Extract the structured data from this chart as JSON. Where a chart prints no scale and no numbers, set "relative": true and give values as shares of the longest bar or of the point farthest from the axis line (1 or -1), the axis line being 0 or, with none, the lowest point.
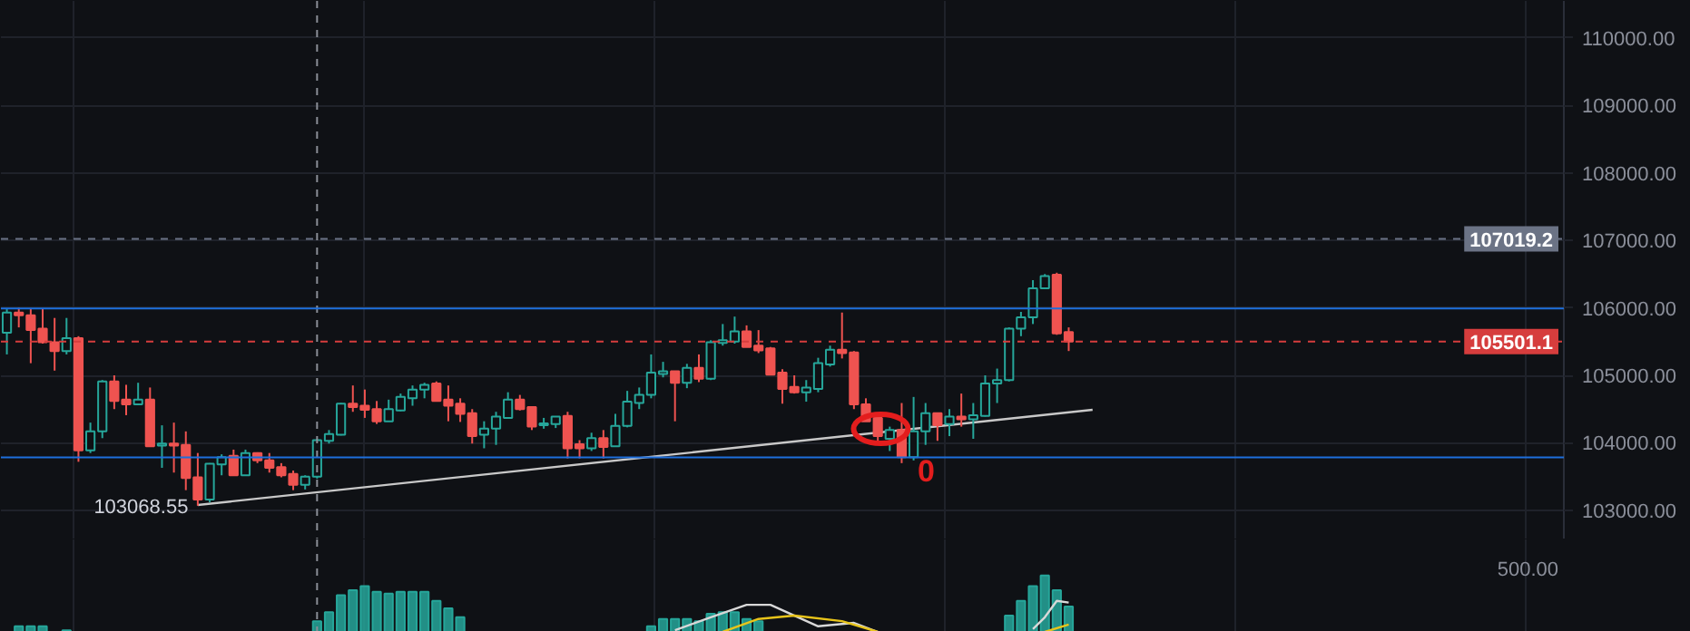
{
  "chart_data": [
    {
      "type": "candlestick",
      "categories": [
        null,
        null,
        null,
        null,
        null,
        null,
        null,
        null,
        null,
        null,
        null,
        null,
        null,
        null,
        null,
        null,
        null,
        null,
        null,
        null,
        null,
        null,
        null,
        null,
        null,
        null,
        null,
        null,
        null,
        null,
        null,
        null,
        null,
        null,
        null,
        null,
        null,
        null,
        null,
        null,
        null,
        null,
        null,
        null,
        null,
        null,
        null,
        null,
        null,
        null,
        null,
        null,
        null,
        null,
        null,
        null,
        null,
        null,
        null,
        null,
        null,
        null,
        null,
        null,
        null,
        null,
        null,
        null,
        null,
        null,
        null,
        null,
        null,
        null,
        null,
        null,
        null,
        null,
        null,
        null,
        null,
        null,
        null,
        null,
        null,
        null,
        null,
        null,
        null,
        null,
        null,
        null,
        null,
        null,
        null,
        null,
        null,
        null,
        null,
        null,
        null,
        null,
        null,
        null,
        null,
        null,
        null,
        null,
        null,
        null,
        null,
        null,
        null,
        null,
        null,
        null,
        null,
        null,
        null,
        null,
        null,
        null,
        null,
        null,
        null,
        null,
        null,
        null,
        null,
        null,
        null
      ],
      "ohlc": [
        [
          105630,
          105980,
          105310,
          105930
        ],
        [
          105930,
          106000,
          105710,
          105890
        ],
        [
          105890,
          105980,
          105180,
          105670
        ],
        [
          105690,
          105980,
          105470,
          105490
        ],
        [
          105490,
          105850,
          105070,
          105360
        ],
        [
          105360,
          105850,
          105310,
          105550
        ],
        [
          105550,
          105580,
          103720,
          103890
        ],
        [
          103890,
          104300,
          103850,
          104170
        ],
        [
          104170,
          104930,
          104070,
          104910
        ],
        [
          104910,
          105000,
          104500,
          104620
        ],
        [
          104640,
          104860,
          104410,
          104570
        ],
        [
          104570,
          104890,
          104570,
          104640
        ],
        [
          104640,
          104820,
          103950,
          103950
        ],
        [
          103960,
          104260,
          103630,
          103990
        ],
        [
          103990,
          104300,
          103560,
          103960
        ],
        [
          103970,
          104170,
          103300,
          103480
        ],
        [
          103490,
          103850,
          103068.55,
          103160
        ],
        [
          103160,
          103700,
          103120,
          103690
        ],
        [
          103680,
          103830,
          103520,
          103790
        ],
        [
          103810,
          103900,
          103520,
          103520
        ],
        [
          103520,
          103900,
          103520,
          103850
        ],
        [
          103850,
          103860,
          103700,
          103740
        ],
        [
          103740,
          103850,
          103560,
          103630
        ],
        [
          103640,
          103700,
          103490,
          103520
        ],
        [
          103540,
          103590,
          103300,
          103380
        ],
        [
          103380,
          103520,
          103310,
          103500
        ],
        [
          103500,
          104060,
          103470,
          104040
        ],
        [
          104030,
          104190,
          103990,
          104130
        ],
        [
          104120,
          104590,
          104110,
          104580
        ],
        [
          104580,
          104850,
          104460,
          104530
        ],
        [
          104550,
          104790,
          104370,
          104490
        ],
        [
          104500,
          104620,
          104280,
          104320
        ],
        [
          104320,
          104640,
          104320,
          104500
        ],
        [
          104480,
          104730,
          104470,
          104680
        ],
        [
          104660,
          104850,
          104550,
          104790
        ],
        [
          104790,
          104890,
          104660,
          104860
        ],
        [
          104880,
          104910,
          104620,
          104620
        ],
        [
          104640,
          104850,
          104320,
          104550
        ],
        [
          104580,
          104660,
          104310,
          104430
        ],
        [
          104440,
          104500,
          103990,
          104100
        ],
        [
          104120,
          104320,
          103920,
          104210
        ],
        [
          104210,
          104460,
          103970,
          104390
        ],
        [
          104370,
          104750,
          104370,
          104640
        ],
        [
          104640,
          104710,
          104480,
          104500
        ],
        [
          104530,
          104530,
          104190,
          104240
        ],
        [
          104260,
          104370,
          104210,
          104290
        ],
        [
          104280,
          104390,
          104220,
          104390
        ],
        [
          104400,
          104460,
          103770,
          103920
        ],
        [
          103980,
          104040,
          103770,
          103920
        ],
        [
          103920,
          104150,
          103880,
          104070
        ],
        [
          104070,
          104190,
          103770,
          103940
        ],
        [
          103950,
          104430,
          103950,
          104250
        ],
        [
          104250,
          104770,
          104230,
          104610
        ],
        [
          104590,
          104820,
          104500,
          104710
        ],
        [
          104710,
          105310,
          104660,
          105040
        ],
        [
          105020,
          105200,
          104970,
          105060
        ],
        [
          105060,
          105060,
          104320,
          104890
        ],
        [
          104890,
          105170,
          104810,
          105110
        ],
        [
          105110,
          105310,
          104900,
          104950
        ],
        [
          104950,
          105520,
          104930,
          105490
        ],
        [
          105480,
          105760,
          105440,
          105520
        ],
        [
          105500,
          105870,
          105470,
          105650
        ],
        [
          105650,
          105740,
          105420,
          105420
        ],
        [
          105440,
          105670,
          105330,
          105370
        ],
        [
          105400,
          105420,
          105010,
          105010
        ],
        [
          105040,
          105090,
          104580,
          104800
        ],
        [
          104830,
          105000,
          104730,
          104750
        ],
        [
          104750,
          104930,
          104610,
          104820
        ],
        [
          104800,
          105260,
          104750,
          105180
        ],
        [
          105160,
          105440,
          105130,
          105380
        ],
        [
          105380,
          105930,
          105250,
          105330
        ],
        [
          105340,
          105360,
          104500,
          104570
        ],
        [
          104570,
          104660,
          104320,
          104320
        ],
        [
          104370,
          104440,
          103970,
          104100
        ],
        [
          104060,
          104240,
          103880,
          104190
        ],
        [
          104190,
          104590,
          103700,
          103790
        ],
        [
          103790,
          104680,
          103740,
          104170
        ],
        [
          104170,
          104590,
          103970,
          104440
        ],
        [
          104440,
          104440,
          104030,
          104260
        ],
        [
          104280,
          104500,
          104100,
          104390
        ],
        [
          104390,
          104730,
          104240,
          104350
        ],
        [
          104350,
          104590,
          104060,
          104410
        ],
        [
          104400,
          105000,
          104390,
          104880
        ],
        [
          104880,
          105100,
          104590,
          104930
        ],
        [
          104930,
          105710,
          104910,
          105690
        ],
        [
          105690,
          105940,
          105580,
          105860
        ],
        [
          105860,
          106410,
          105760,
          106290
        ],
        [
          106290,
          106500,
          106290,
          106470
        ],
        [
          106490,
          106520,
          105600,
          105620
        ],
        [
          105640,
          105710,
          105360,
          105501.1
        ],
        null,
        null,
        null,
        null,
        null,
        null,
        null,
        null,
        null,
        null,
        null,
        null,
        null,
        null,
        null,
        null,
        null,
        null,
        null,
        null,
        null,
        null,
        null,
        null,
        null,
        null,
        null,
        null,
        null,
        null,
        null,
        null,
        null,
        null,
        null,
        null,
        null,
        null,
        null,
        null,
        null
      ],
      "colors": [
        "#26a69a",
        "#ef5350",
        "#ef5350",
        "#ef5350",
        "#ef5350",
        "#26a69a",
        "#ef5350",
        "#26a69a",
        "#26a69a",
        "#ef5350",
        "#ef5350",
        "#26a69a",
        "#ef5350",
        "#26a69a",
        "#ef5350",
        "#ef5350",
        "#ef5350",
        "#26a69a",
        "#26a69a",
        "#ef5350",
        "#26a69a",
        "#ef5350",
        "#ef5350",
        "#ef5350",
        "#ef5350",
        "#26a69a",
        "#26a69a",
        "#26a69a",
        "#26a69a",
        "#ef5350",
        "#ef5350",
        "#ef5350",
        "#26a69a",
        "#26a69a",
        "#26a69a",
        "#26a69a",
        "#ef5350",
        "#ef5350",
        "#ef5350",
        "#ef5350",
        "#26a69a",
        "#26a69a",
        "#26a69a",
        "#ef5350",
        "#ef5350",
        "#26a69a",
        "#26a69a",
        "#ef5350",
        "#ef5350",
        "#26a69a",
        "#ef5350",
        "#26a69a",
        "#26a69a",
        "#26a69a",
        "#26a69a",
        "#26a69a",
        "#ef5350",
        "#26a69a",
        "#ef5350",
        "#26a69a",
        "#26a69a",
        "#26a69a",
        "#ef5350",
        "#ef5350",
        "#ef5350",
        "#ef5350",
        "#ef5350",
        "#26a69a",
        "#26a69a",
        "#26a69a",
        "#ef5350",
        "#ef5350",
        "#ef5350",
        "#ef5350",
        "#26a69a",
        "#ef5350",
        "#26a69a",
        "#26a69a",
        "#ef5350",
        "#26a69a",
        "#ef5350",
        "#26a69a",
        "#26a69a",
        "#26a69a",
        "#26a69a",
        "#26a69a",
        "#26a69a",
        "#26a69a",
        "#ef5350",
        "#ef5350",
        null,
        null,
        null,
        null,
        null,
        null,
        null,
        null,
        null,
        null,
        null,
        null,
        null,
        null,
        null,
        null,
        null,
        null,
        null,
        null,
        null,
        null,
        null,
        null,
        null,
        null,
        null,
        null,
        null,
        null,
        null,
        null,
        null,
        null,
        null,
        null,
        null,
        null,
        null,
        null,
        null
      ],
      "series": [
        {
          "type": "line",
          "color": "#c8c8c8",
          "values": [
            null,
            null,
            null,
            null,
            null,
            null,
            null,
            null,
            null,
            null,
            null,
            null,
            null,
            null,
            null,
            null,
            103080,
            null,
            null,
            null,
            null,
            null,
            null,
            null,
            null,
            null,
            null,
            null,
            null,
            null,
            null,
            null,
            null,
            null,
            null,
            null,
            null,
            null,
            null,
            null,
            null,
            null,
            null,
            null,
            null,
            null,
            null,
            null,
            null,
            null,
            null,
            null,
            null,
            null,
            null,
            null,
            null,
            null,
            null,
            null,
            null,
            null,
            null,
            null,
            null,
            null,
            null,
            null,
            null,
            null,
            null,
            null,
            null,
            null,
            null,
            null,
            null,
            null,
            null,
            null,
            null,
            null,
            null,
            null,
            null,
            null,
            null,
            null,
            null,
            null,
            null,
            104490,
            null,
            null,
            null,
            null,
            null,
            null,
            null,
            null,
            null,
            null,
            null,
            null,
            null,
            null,
            null,
            null,
            null,
            null,
            null,
            null,
            null,
            null,
            null,
            null,
            null,
            null,
            null,
            null,
            null,
            null,
            null,
            null,
            null,
            null,
            null,
            null,
            null,
            null,
            null
          ]
        }
      ],
      "ylim": [
        102570,
        110545
      ],
      "yticks": [
        {
          "value": 103000,
          "label": "103000.00"
        },
        {
          "value": 104000,
          "label": "104000.00"
        },
        {
          "value": 105000,
          "label": "105000.00"
        },
        {
          "value": 106000,
          "label": "106000.00"
        },
        {
          "value": 107000,
          "label": "107000.00"
        },
        {
          "value": 108000,
          "label": "108000.00"
        },
        {
          "value": 109000,
          "label": "109000.00"
        },
        {
          "value": 110000,
          "label": "110000.00"
        }
      ],
      "grid": true,
      "annotations": [
        "103068.55",
        "0"
      ],
      "ref_lines": [
        {
          "axis": "y",
          "value": 107019.2,
          "label": "107019.2",
          "color": "#6b7385",
          "line_style": "dashed"
        },
        {
          "axis": "y",
          "value": 105501.1,
          "label": "105501.1",
          "color": "#d63d3d",
          "line_style": "dashed"
        },
        {
          "axis": "y",
          "value": 105990,
          "color": "#1e6fdc"
        },
        {
          "axis": "y",
          "value": 103786,
          "color": "#1e6fdc"
        }
      ]
    },
    {
      "type": "bar",
      "relative": true,
      "categories": [
        null,
        null,
        null,
        null,
        null,
        null,
        null,
        null,
        null,
        null,
        null,
        null,
        null,
        null,
        null,
        null,
        null,
        null,
        null,
        null,
        null,
        null,
        null,
        null,
        null,
        null,
        null,
        null,
        null,
        null,
        null,
        null,
        null,
        null,
        null,
        null,
        null,
        null,
        null,
        null,
        null,
        null,
        null,
        null,
        null,
        null,
        null,
        null,
        null,
        null,
        null,
        null,
        null,
        null,
        null,
        null,
        null,
        null,
        null,
        null,
        null,
        null,
        null,
        null,
        null,
        null,
        null,
        null,
        null,
        null,
        null,
        null,
        null,
        null,
        null,
        null,
        null,
        null,
        null,
        null,
        null,
        null,
        null,
        null,
        null,
        null,
        null,
        null,
        null,
        null,
        null,
        null,
        null,
        null,
        null,
        null,
        null,
        null,
        null,
        null,
        null,
        null,
        null,
        null,
        null,
        null,
        null,
        null,
        null,
        null,
        null,
        null,
        null,
        null,
        null,
        null,
        null,
        null,
        null,
        null,
        null,
        null,
        null,
        null,
        null,
        null,
        null,
        null,
        null,
        null,
        null
      ],
      "series": [
        {
          "type": "bar",
          "color": "#26a69a",
          "values": [
            null,
            0.1,
            0.1,
            0.1,
            null,
            0.03,
            null,
            null,
            null,
            null,
            null,
            null,
            null,
            null,
            null,
            null,
            null,
            null,
            null,
            null,
            null,
            null,
            null,
            null,
            null,
            null,
            0.19,
            0.35,
            0.65,
            0.74,
            0.81,
            0.71,
            0.68,
            0.71,
            0.71,
            0.71,
            0.55,
            0.42,
            0.26,
            null,
            null,
            null,
            null,
            null,
            null,
            null,
            null,
            null,
            null,
            null,
            null,
            null,
            null,
            null,
            0.1,
            0.23,
            0.23,
            0.23,
            0.19,
            0.32,
            0.35,
            0.35,
            0.23,
            0.19,
            null,
            null,
            null,
            null,
            null,
            null,
            null,
            null,
            null,
            null,
            null,
            null,
            null,
            null,
            null,
            null,
            null,
            null,
            null,
            null,
            0.29,
            0.55,
            0.81,
            1,
            0.74,
            0.45,
            null,
            null,
            null,
            null,
            null,
            null,
            null,
            null,
            null,
            null,
            null,
            null,
            null,
            null,
            null,
            null,
            null,
            null,
            null,
            null,
            null,
            null,
            null,
            null,
            null,
            null,
            null,
            null,
            null,
            null,
            null,
            null,
            null,
            null,
            null,
            null,
            null,
            null,
            null,
            null,
            null
          ]
        },
        {
          "type": "line",
          "color": "#d8d8d8",
          "values": [
            null,
            null,
            null,
            null,
            null,
            null,
            null,
            null,
            null,
            null,
            null,
            null,
            null,
            null,
            null,
            null,
            null,
            null,
            null,
            null,
            null,
            null,
            null,
            null,
            null,
            null,
            null,
            null,
            null,
            null,
            null,
            null,
            null,
            null,
            null,
            null,
            null,
            null,
            null,
            null,
            null,
            null,
            null,
            null,
            null,
            null,
            null,
            null,
            null,
            null,
            null,
            null,
            null,
            null,
            null,
            null,
            0.03,
            null,
            null,
            0.26,
            null,
            null,
            0.48,
            null,
            0.48,
            null,
            null,
            null,
            0.1,
            null,
            null,
            0.16,
            null,
            0,
            null,
            null,
            null,
            null,
            null,
            null,
            null,
            null,
            null,
            null,
            null,
            null,
            null,
            null,
            null,
            null,
            null,
            null,
            null,
            null,
            null,
            null,
            null,
            null,
            null,
            null,
            null,
            null,
            null,
            null,
            null,
            null,
            null,
            null,
            null,
            null,
            null,
            null,
            null,
            null,
            null,
            null,
            null,
            null,
            null,
            null,
            null,
            null,
            null,
            null,
            null,
            null,
            null,
            null,
            null,
            null,
            null
          ]
        },
        {
          "type": "line",
          "color": "#d8d8d8",
          "values": [
            null,
            null,
            null,
            null,
            null,
            null,
            null,
            null,
            null,
            null,
            null,
            null,
            null,
            null,
            null,
            null,
            null,
            null,
            null,
            null,
            null,
            null,
            null,
            null,
            null,
            null,
            null,
            null,
            null,
            null,
            null,
            null,
            null,
            null,
            null,
            null,
            null,
            null,
            null,
            null,
            null,
            null,
            null,
            null,
            null,
            null,
            null,
            null,
            null,
            null,
            null,
            null,
            null,
            null,
            null,
            null,
            null,
            null,
            null,
            null,
            null,
            null,
            null,
            null,
            null,
            null,
            null,
            null,
            null,
            null,
            null,
            null,
            null,
            null,
            null,
            null,
            null,
            null,
            null,
            null,
            null,
            null,
            null,
            null,
            null,
            null,
            0.05,
            0.26,
            0.55,
            0.52,
            null,
            null,
            null,
            null,
            null,
            null,
            null,
            null,
            null,
            null,
            null,
            null,
            null,
            null,
            null,
            null,
            null,
            null,
            null,
            null,
            null,
            null,
            null,
            null,
            null,
            null,
            null,
            null,
            null,
            null,
            null,
            null,
            null,
            null,
            null,
            null,
            null,
            null,
            null,
            null,
            null
          ]
        },
        {
          "type": "line",
          "color": "#e8c41a",
          "values": [
            null,
            null,
            null,
            null,
            null,
            null,
            null,
            null,
            null,
            null,
            null,
            null,
            null,
            null,
            null,
            null,
            null,
            null,
            null,
            null,
            null,
            null,
            null,
            null,
            null,
            null,
            null,
            null,
            null,
            null,
            null,
            null,
            null,
            null,
            null,
            null,
            null,
            null,
            null,
            null,
            null,
            null,
            null,
            null,
            null,
            null,
            null,
            null,
            null,
            null,
            null,
            null,
            null,
            null,
            null,
            null,
            null,
            null,
            null,
            null,
            0,
            null,
            null,
            0.23,
            null,
            null,
            0.29,
            null,
            null,
            null,
            0.19,
            null,
            null,
            0,
            null,
            null,
            null,
            null,
            null,
            null,
            null,
            null,
            null,
            null,
            null,
            null,
            null,
            null,
            null,
            null,
            null,
            null,
            null,
            null,
            null,
            null,
            null,
            null,
            null,
            null,
            null,
            null,
            null,
            null,
            null,
            null,
            null,
            null,
            null,
            null,
            null,
            null,
            null,
            null,
            null,
            null,
            null,
            null,
            null,
            null,
            null,
            null,
            null,
            null,
            null,
            null,
            null,
            null,
            null,
            null,
            null
          ]
        },
        {
          "type": "line",
          "color": "#e8c41a",
          "values": [
            null,
            null,
            null,
            null,
            null,
            null,
            null,
            null,
            null,
            null,
            null,
            null,
            null,
            null,
            null,
            null,
            null,
            null,
            null,
            null,
            null,
            null,
            null,
            null,
            null,
            null,
            null,
            null,
            null,
            null,
            null,
            null,
            null,
            null,
            null,
            null,
            null,
            null,
            null,
            null,
            null,
            null,
            null,
            null,
            null,
            null,
            null,
            null,
            null,
            null,
            null,
            null,
            null,
            null,
            null,
            null,
            null,
            null,
            null,
            null,
            null,
            null,
            null,
            null,
            null,
            null,
            null,
            null,
            null,
            null,
            null,
            null,
            null,
            null,
            null,
            null,
            null,
            null,
            null,
            null,
            null,
            null,
            null,
            null,
            null,
            null,
            null,
            0,
            null,
            0.13,
            null,
            null,
            null,
            null,
            null,
            null,
            null,
            null,
            null,
            null,
            null,
            null,
            null,
            null,
            null,
            null,
            null,
            null,
            null,
            null,
            null,
            null,
            null,
            null,
            null,
            null,
            null,
            null,
            null,
            null,
            null,
            null,
            null,
            null,
            null,
            null,
            null,
            null,
            null,
            null,
            null
          ]
        }
      ],
      "annotations": [
        "500.00"
      ],
      "grid": "x"
    }
  ]
}
